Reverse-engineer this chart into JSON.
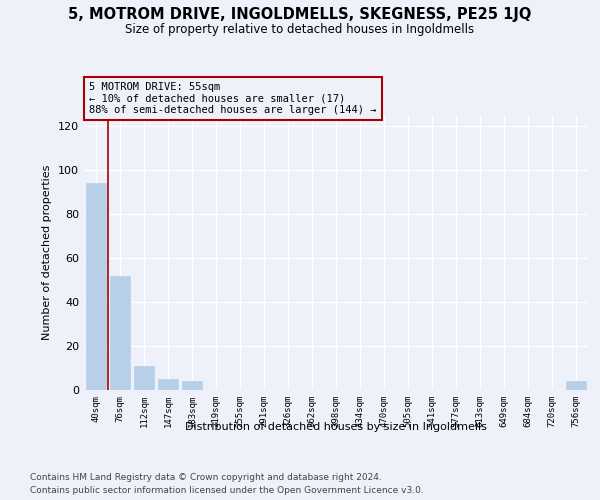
{
  "title": "5, MOTROM DRIVE, INGOLDMELLS, SKEGNESS, PE25 1JQ",
  "subtitle": "Size of property relative to detached houses in Ingoldmells",
  "xlabel": "Distribution of detached houses by size in Ingoldmells",
  "ylabel": "Number of detached properties",
  "bar_color": "#b8cfe8",
  "annotation_line_color": "#aa0000",
  "annotation_box_color": "#aa0000",
  "annotation_text": "5 MOTROM DRIVE: 55sqm\n← 10% of detached houses are smaller (17)\n88% of semi-detached houses are larger (144) →",
  "property_bin_index": 1,
  "vline_x": 0.5,
  "categories": [
    "40sqm",
    "76sqm",
    "112sqm",
    "147sqm",
    "183sqm",
    "219sqm",
    "255sqm",
    "291sqm",
    "326sqm",
    "362sqm",
    "398sqm",
    "434sqm",
    "470sqm",
    "505sqm",
    "541sqm",
    "577sqm",
    "613sqm",
    "649sqm",
    "684sqm",
    "720sqm",
    "756sqm"
  ],
  "values": [
    94,
    52,
    11,
    5,
    4,
    0,
    0,
    0,
    0,
    0,
    0,
    0,
    0,
    0,
    0,
    0,
    0,
    0,
    0,
    0,
    4
  ],
  "ylim": [
    0,
    125
  ],
  "yticks": [
    0,
    20,
    40,
    60,
    80,
    100,
    120
  ],
  "footer1": "Contains HM Land Registry data © Crown copyright and database right 2024.",
  "footer2": "Contains public sector information licensed under the Open Government Licence v3.0.",
  "background_color": "#eef1fa",
  "grid_color": "#ffffff"
}
